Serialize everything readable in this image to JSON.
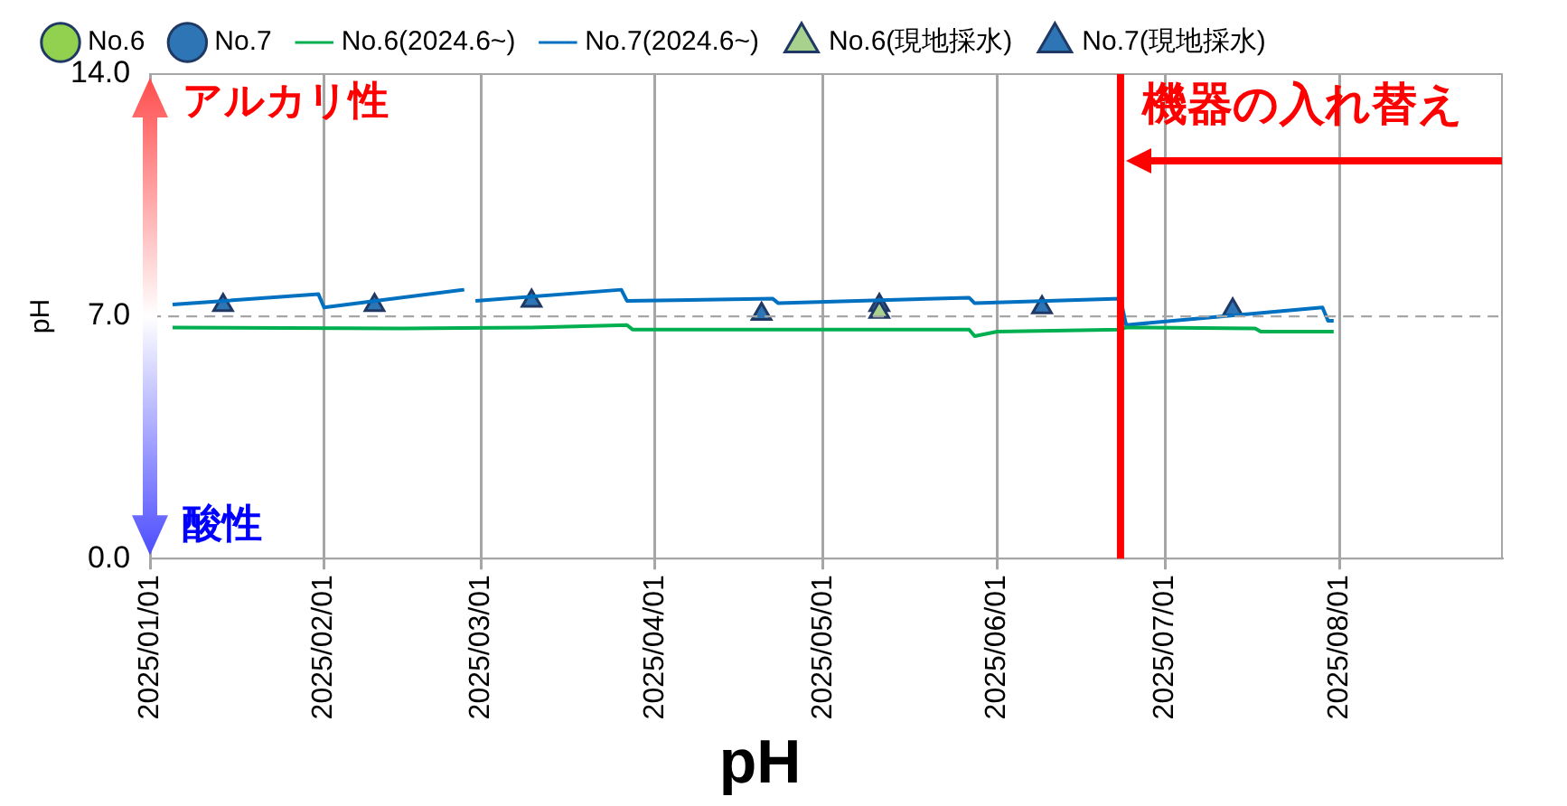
{
  "chart_data": {
    "type": "line",
    "title": "pH",
    "ylabel": "pH",
    "xlim": [
      "2025-01-01",
      "2025-08-30"
    ],
    "xticks": [
      {
        "value": "2025-01-01",
        "label": "2025/01/01"
      },
      {
        "value": "2025-02-01",
        "label": "2025/02/01"
      },
      {
        "value": "2025-03-01",
        "label": "2025/03/01"
      },
      {
        "value": "2025-04-01",
        "label": "2025/04/01"
      },
      {
        "value": "2025-05-01",
        "label": "2025/05/01"
      },
      {
        "value": "2025-06-01",
        "label": "2025/06/01"
      },
      {
        "value": "2025-07-01",
        "label": "2025/07/01"
      },
      {
        "value": "2025-08-01",
        "label": "2025/08/01"
      }
    ],
    "ylim": [
      0,
      14
    ],
    "yticks": [
      {
        "value": 0,
        "label": "0.0"
      },
      {
        "value": 7,
        "label": "7.0"
      },
      {
        "value": 14,
        "label": "14.0"
      }
    ],
    "grid": "x",
    "legend": "top",
    "series": [
      {
        "name": "No.6",
        "type": "scatter",
        "marker": "circle",
        "color": "#92d050"
      },
      {
        "name": "No.7",
        "type": "scatter",
        "marker": "circle",
        "color": "#2e75b6"
      },
      {
        "name": "No.6(2024.6~)",
        "type": "line",
        "marker": "none",
        "color": "#00b050",
        "x": [
          "2025-01-05",
          "2025-02-15",
          "2025-03-10",
          "2025-03-27",
          "2025-03-28",
          "2025-05-27",
          "2025-05-28",
          "2025-06-01",
          "2025-06-23",
          "2025-06-24",
          "2025-07-17",
          "2025-07-18",
          "2025-07-31"
        ],
        "values": [
          6.68,
          6.65,
          6.68,
          6.75,
          6.62,
          6.62,
          6.43,
          6.56,
          6.62,
          6.68,
          6.65,
          6.56,
          6.56
        ]
      },
      {
        "name": "No.7(2024.6~)",
        "type": "line",
        "marker": "none",
        "color": "#0070c0",
        "x": [
          "2025-01-05",
          "2025-01-31",
          "2025-02-01",
          "2025-02-26",
          "2025-02-27",
          "2025-02-28",
          "2025-03-26",
          "2025-03-27",
          "2025-04-22",
          "2025-04-23",
          "2025-05-27",
          "2025-05-28",
          "2025-06-23",
          "2025-06-24",
          "2025-07-29",
          "2025-07-30",
          "2025-07-31"
        ],
        "values": [
          7.34,
          7.64,
          7.26,
          7.77,
          null,
          7.45,
          7.77,
          7.45,
          7.51,
          7.38,
          7.54,
          7.38,
          7.51,
          6.75,
          7.26,
          6.87,
          6.87
        ]
      },
      {
        "name": "No.6(現地採水)",
        "type": "scatter",
        "marker": "triangle",
        "color": "#a9d18e",
        "x": [
          "2025-05-11"
        ],
        "values": [
          7.13
        ]
      },
      {
        "name": "No.7(現地採水)",
        "type": "scatter",
        "marker": "triangle",
        "color": "#2e75b6",
        "x": [
          "2025-01-14",
          "2025-02-10",
          "2025-03-10",
          "2025-04-20",
          "2025-05-11",
          "2025-06-09",
          "2025-07-13"
        ],
        "values": [
          7.32,
          7.32,
          7.45,
          7.07,
          7.32,
          7.26,
          7.19
        ]
      }
    ],
    "ref_lines": [
      {
        "axis": "y",
        "value": 7,
        "color": "#a6a6a6",
        "line_style": "dashed"
      },
      {
        "axis": "x",
        "value": "2025-06-23",
        "label": "機器の入れ替え",
        "color": "#ff0000",
        "line_style": "solid"
      }
    ],
    "annotations": [
      "アルカリ性",
      "酸性"
    ]
  }
}
